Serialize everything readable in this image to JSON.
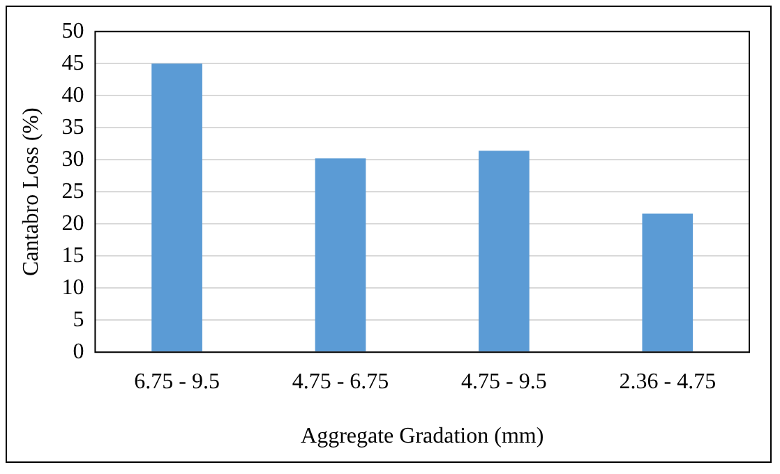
{
  "chart_data": {
    "type": "bar",
    "xlabel": "Aggregate Gradation (mm)",
    "ylabel": "Cantabro Loss (%)",
    "categories": [
      "6.75 - 9.5",
      "4.75 - 6.75",
      "4.75 - 9.5",
      "2.36 - 4.75"
    ],
    "values": [
      45,
      30.2,
      31.4,
      21.6
    ],
    "color": "#5b9bd5",
    "ylim": [
      0,
      50
    ],
    "yticks": [
      0,
      5,
      10,
      15,
      20,
      25,
      30,
      35,
      40,
      45,
      50
    ],
    "grid": "y"
  }
}
